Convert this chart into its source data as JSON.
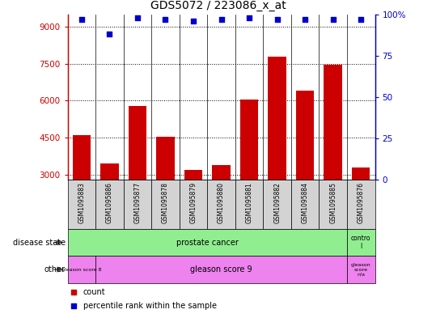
{
  "title": "GDS5072 / 223086_x_at",
  "samples": [
    "GSM1095883",
    "GSM1095886",
    "GSM1095877",
    "GSM1095878",
    "GSM1095879",
    "GSM1095880",
    "GSM1095881",
    "GSM1095882",
    "GSM1095884",
    "GSM1095885",
    "GSM1095876"
  ],
  "counts": [
    4600,
    3450,
    5800,
    4550,
    3200,
    3400,
    6050,
    7800,
    6400,
    7450,
    3300
  ],
  "percentiles": [
    97,
    88,
    98,
    97,
    96,
    97,
    98,
    97,
    97,
    97,
    97
  ],
  "ylim_left": [
    2800,
    9500
  ],
  "ylim_right": [
    0,
    100
  ],
  "yticks_left": [
    3000,
    4500,
    6000,
    7500,
    9000
  ],
  "yticks_right": [
    0,
    25,
    50,
    75,
    100
  ],
  "bar_color": "#cc0000",
  "dot_color": "#0000cc",
  "bar_baseline": 2800,
  "legend_items": [
    {
      "label": "count",
      "color": "#cc0000"
    },
    {
      "label": "percentile rank within the sample",
      "color": "#0000cc"
    }
  ],
  "title_fontsize": 10,
  "tick_fontsize": 7.5,
  "label_fontsize": 7,
  "sample_fontsize": 5.5,
  "ann_fontsize": 7,
  "bg_color": "#ffffff",
  "gray_box": "#d3d3d3",
  "green_color": "#90ee90",
  "pink_color": "#ee82ee"
}
